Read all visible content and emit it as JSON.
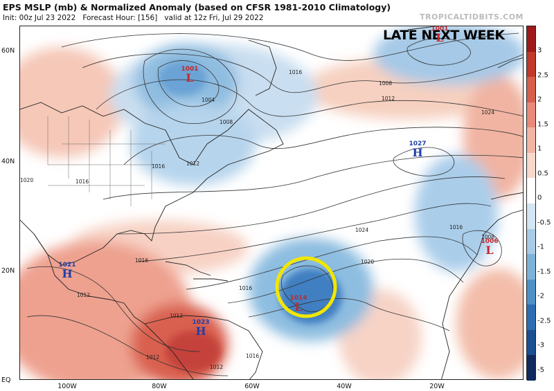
{
  "header": {
    "title": "EPS MSLP (mb) & Normalized Anomaly (based on CFSR 1981-2010 Climatology)",
    "init": "Init: 00z Jul 23 2022",
    "forecast_hour": "Forecast Hour: [156]",
    "valid": "valid at 12z Fri, Jul 29 2022",
    "credit": "TROPICALTIDBITS.COM"
  },
  "banner": "LATE NEXT WEEK",
  "lat_labels": [
    "60N",
    "40N",
    "20N",
    "EQ"
  ],
  "lon_labels": [
    "100W",
    "80W",
    "60W",
    "40W",
    "20W"
  ],
  "colorbar": {
    "labels": [
      "3",
      "2.5",
      "2",
      "1.5",
      "1",
      "0.5",
      "0",
      "-0.5",
      "-1",
      "-1.5",
      "-2",
      "-2.5",
      "-3",
      "-5"
    ],
    "colors": [
      "#9e1a1a",
      "#c0392b",
      "#d6604d",
      "#e8897a",
      "#f2b5a4",
      "#f8d8ca",
      "#ffffff",
      "#d4e6f2",
      "#a9cce6",
      "#7fb2d9",
      "#4f90c6",
      "#2c6eaf",
      "#1b4f8f",
      "#102a5c"
    ]
  },
  "centers": [
    {
      "value": "1001",
      "symbol": "L",
      "color": "#c0282d"
    },
    {
      "value": "1001",
      "symbol": "L",
      "color": "#c0282d"
    },
    {
      "value": "1027",
      "symbol": "H",
      "color": "#1f3fa8"
    },
    {
      "value": "1006",
      "symbol": "L",
      "color": "#c0282d"
    },
    {
      "value": "1021",
      "symbol": "H",
      "color": "#1f3fa8"
    },
    {
      "value": "1023",
      "symbol": "H",
      "color": "#1f3fa8"
    },
    {
      "value": "1014",
      "symbol": "L",
      "color": "#c0282d"
    }
  ],
  "isobar_labels": [
    "1016",
    "1008",
    "1012",
    "1024",
    "1004",
    "1008",
    "1016",
    "1012",
    "1020",
    "1016",
    "1024",
    "1020",
    "1016",
    "1016",
    "1012",
    "1012",
    "1016",
    "1012",
    "1016",
    "1008",
    "1012"
  ],
  "highlight": {
    "color": "#f2e600",
    "target": "1014 L low"
  }
}
